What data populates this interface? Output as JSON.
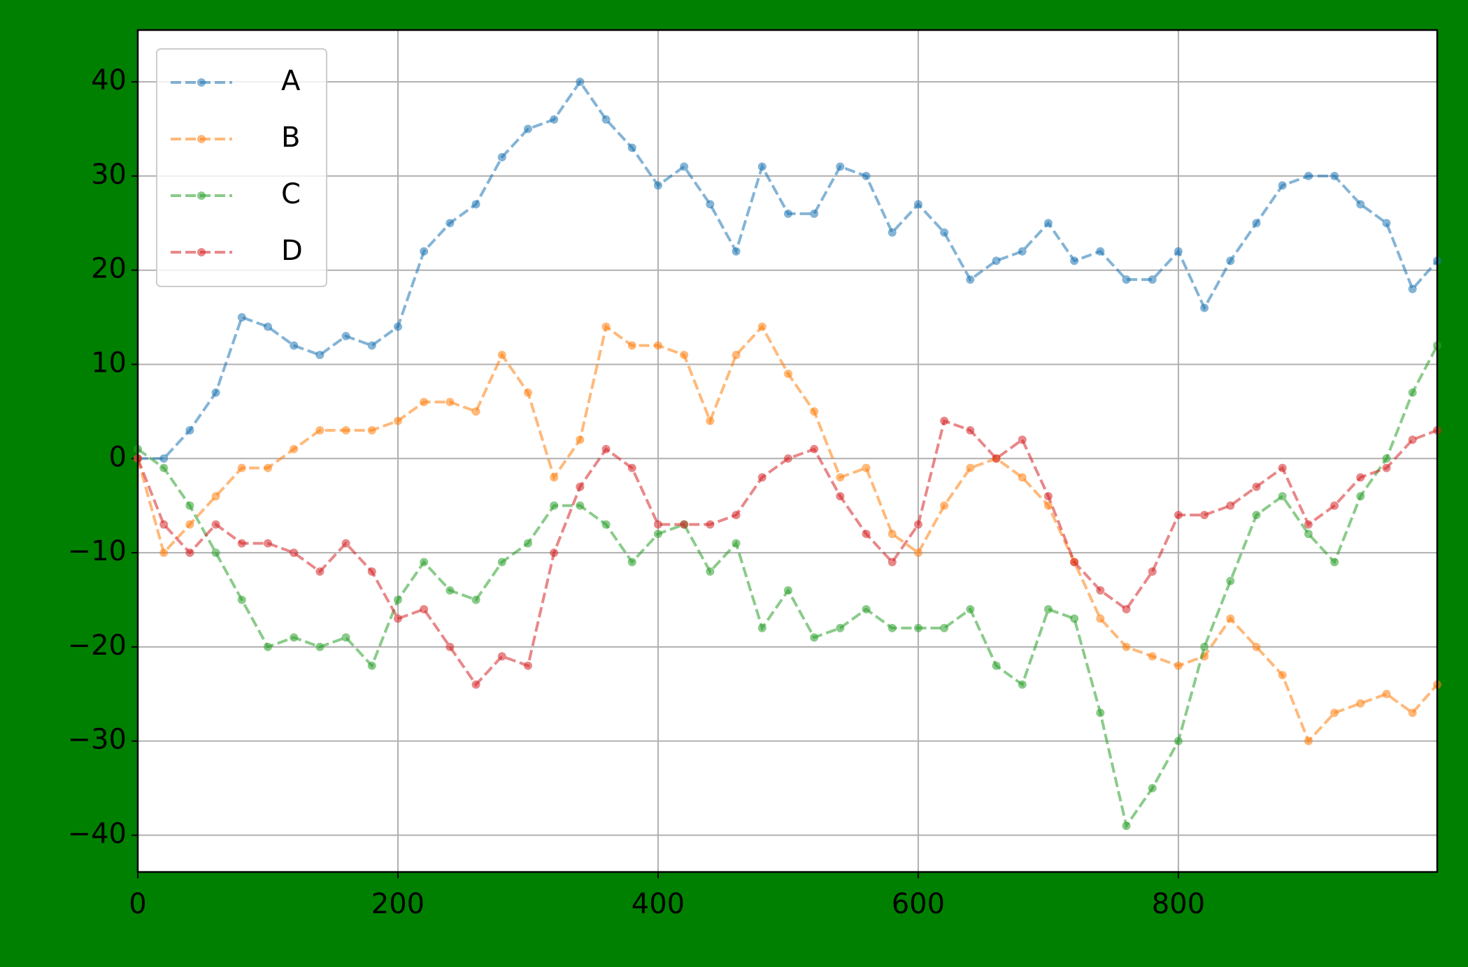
{
  "chart_data": {
    "type": "line",
    "x": [
      0,
      20,
      40,
      60,
      80,
      100,
      120,
      140,
      160,
      180,
      200,
      220,
      240,
      260,
      280,
      300,
      320,
      340,
      360,
      380,
      400,
      420,
      440,
      460,
      480,
      500,
      520,
      540,
      560,
      580,
      600,
      620,
      640,
      660,
      680,
      700,
      720,
      740,
      760,
      780,
      800,
      820,
      840,
      860,
      880,
      900,
      920,
      940,
      960,
      980,
      999
    ],
    "series": [
      {
        "name": "A",
        "color": "#1f77b4",
        "values": [
          0,
          0,
          3,
          7,
          15,
          14,
          12,
          11,
          13,
          12,
          14,
          22,
          25,
          27,
          32,
          35,
          36,
          40,
          36,
          33,
          29,
          31,
          27,
          22,
          31,
          26,
          26,
          31,
          30,
          24,
          27,
          24,
          19,
          21,
          22,
          25,
          21,
          22,
          19,
          19,
          22,
          16,
          21,
          25,
          29,
          30,
          30,
          27,
          25,
          18,
          21
        ]
      },
      {
        "name": "B",
        "color": "#ff7f0e",
        "values": [
          0,
          -10,
          -7,
          -4,
          -1,
          -1,
          1,
          3,
          3,
          3,
          4,
          6,
          6,
          5,
          11,
          7,
          -2,
          2,
          14,
          12,
          12,
          11,
          4,
          11,
          14,
          9,
          5,
          -2,
          -1,
          -8,
          -10,
          -5,
          -1,
          0,
          -2,
          -5,
          -11,
          -17,
          -20,
          -21,
          -22,
          -21,
          -17,
          -20,
          -23,
          -30,
          -27,
          -26,
          -25,
          -27,
          -24
        ]
      },
      {
        "name": "C",
        "color": "#2ca02c",
        "values": [
          1,
          -1,
          -5,
          -10,
          -15,
          -20,
          -19,
          -20,
          -19,
          -22,
          -15,
          -11,
          -14,
          -15,
          -11,
          -9,
          -5,
          -5,
          -7,
          -11,
          -8,
          -7,
          -12,
          -9,
          -18,
          -14,
          -19,
          -18,
          -16,
          -18,
          -18,
          -18,
          -16,
          -22,
          -24,
          -16,
          -17,
          -27,
          -39,
          -35,
          -30,
          -20,
          -13,
          -6,
          -4,
          -8,
          -11,
          -4,
          0,
          7,
          12
        ]
      },
      {
        "name": "D",
        "color": "#d62728",
        "values": [
          0,
          -7,
          -10,
          -7,
          -9,
          -9,
          -10,
          -12,
          -9,
          -12,
          -17,
          -16,
          -20,
          -24,
          -21,
          -22,
          -10,
          -3,
          1,
          -1,
          -7,
          -7,
          -7,
          -6,
          -2,
          0,
          1,
          -4,
          -8,
          -11,
          -7,
          4,
          3,
          0,
          2,
          -4,
          -11,
          -14,
          -16,
          -12,
          -6,
          -6,
          -5,
          -3,
          -1,
          -7,
          -5,
          -2,
          -1,
          2,
          3
        ]
      }
    ],
    "xlim": [
      0,
      999
    ],
    "ylim": [
      -43.9,
      45.5
    ],
    "xticks": [
      0,
      200,
      400,
      600,
      800
    ],
    "yticks": [
      {
        "value": -40,
        "label": "−40"
      },
      {
        "value": -30,
        "label": "−30"
      },
      {
        "value": -20,
        "label": "−20"
      },
      {
        "value": -10,
        "label": "−10"
      },
      0,
      10,
      20,
      30,
      40
    ],
    "grid": true,
    "legend": "upper left",
    "background": "#008000"
  }
}
